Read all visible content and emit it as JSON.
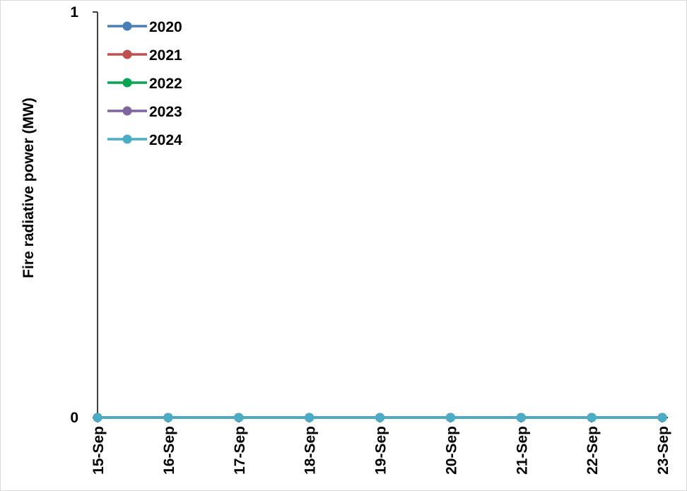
{
  "chart_data": {
    "type": "line",
    "title": "",
    "xlabel": "",
    "ylabel": "Fire radiative power (MW)",
    "ylim": [
      0,
      1
    ],
    "yticks": [
      "0",
      "1"
    ],
    "categories": [
      "15-Sep",
      "16-Sep",
      "17-Sep",
      "18-Sep",
      "19-Sep",
      "20-Sep",
      "21-Sep",
      "22-Sep",
      "23-Sep"
    ],
    "grid": false,
    "legend_position": "top-left",
    "series": [
      {
        "name": "2020",
        "color": "#4a7ebb",
        "values": [
          0,
          0,
          0,
          0,
          0,
          0,
          0,
          0,
          0
        ]
      },
      {
        "name": "2021",
        "color": "#c0504d",
        "values": [
          0,
          0,
          0,
          0,
          0,
          0,
          0,
          0,
          0
        ]
      },
      {
        "name": "2022",
        "color": "#00a650",
        "values": [
          0,
          0,
          0,
          0,
          0,
          0,
          0,
          0,
          0
        ]
      },
      {
        "name": "2023",
        "color": "#8064a2",
        "values": [
          0,
          0,
          0,
          0,
          0,
          0,
          0,
          0,
          0
        ]
      },
      {
        "name": "2024",
        "color": "#4bacc6",
        "values": [
          0,
          0,
          0,
          0,
          0,
          0,
          0,
          0,
          0
        ]
      }
    ]
  }
}
